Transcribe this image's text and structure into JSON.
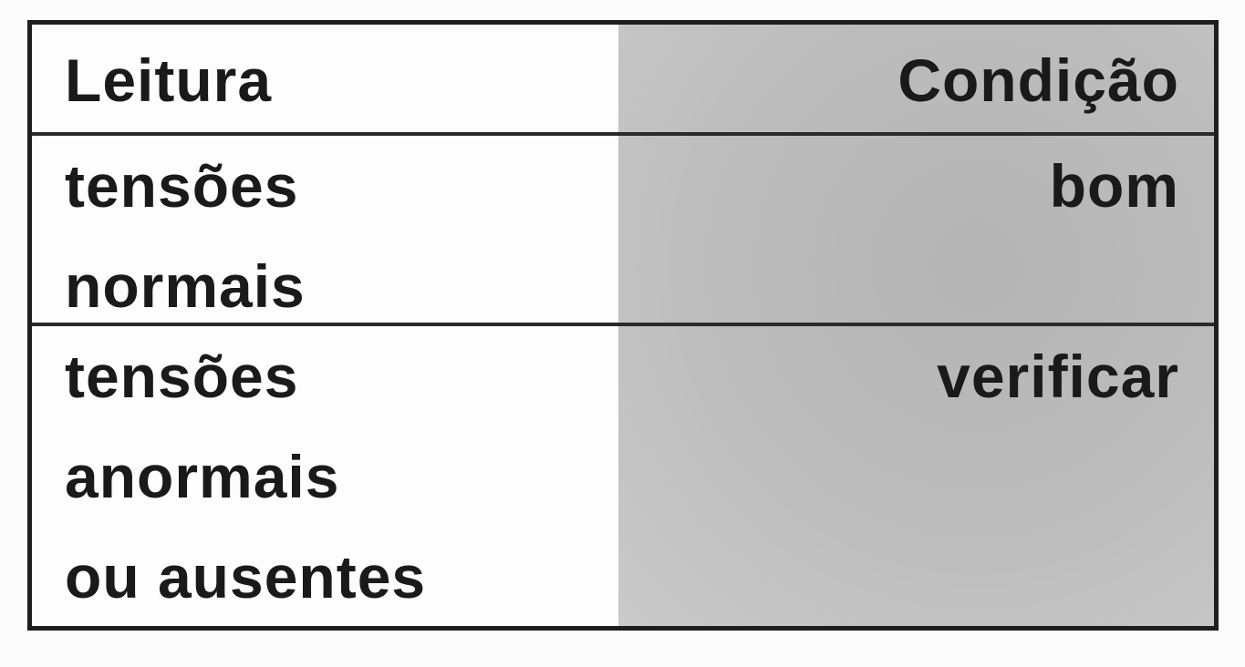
{
  "table": {
    "headers": [
      "Leitura",
      "Condição"
    ],
    "rows": [
      {
        "reading": [
          "tensões",
          "normais"
        ],
        "condition": "bom"
      },
      {
        "reading": [
          "tensões",
          "anormais",
          "ou ausentes"
        ],
        "condition": "verificar"
      }
    ]
  },
  "colors": {
    "condition_column_bg": "#bdbdbd",
    "border": "#1e1e1e"
  }
}
